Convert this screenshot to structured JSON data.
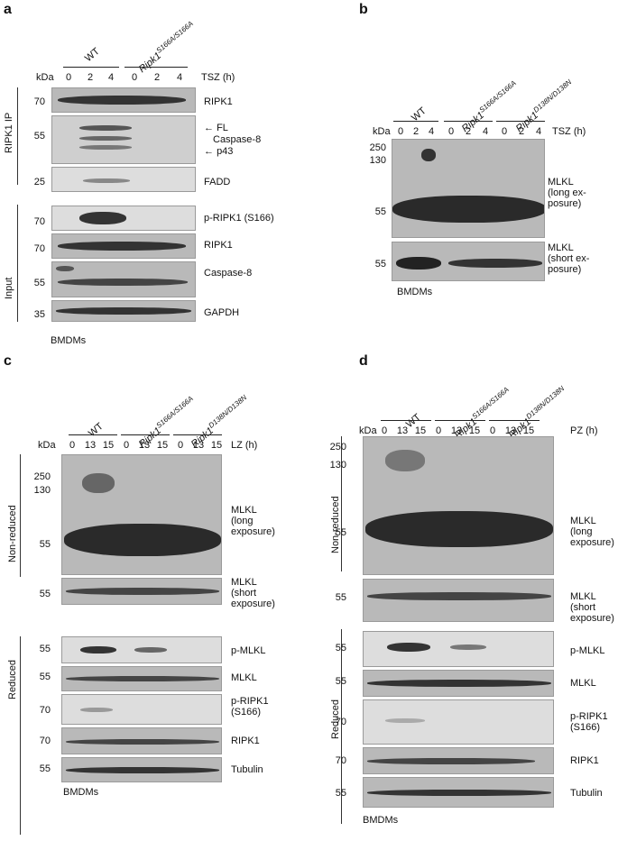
{
  "panels": [
    {
      "letter": "a",
      "kda": "kDa",
      "groups": [
        "WT",
        "Ripk1",
        "S166A/S166A"
      ],
      "lanes": [
        "0",
        "2",
        "4",
        "0",
        "2",
        "4"
      ],
      "treatment": "TSZ (h)",
      "ip_label": "RIPK1 IP",
      "input_label": "Input",
      "cells": "BMDMs",
      "blots": [
        {
          "mw": "70",
          "label": "RIPK1"
        },
        {
          "mw": "55",
          "label": "Caspase-8",
          "arrows": [
            "FL",
            "p43"
          ]
        },
        {
          "mw": "25",
          "label": "FADD"
        },
        {
          "mw": "70",
          "label": "p-RIPK1 (S166)"
        },
        {
          "mw": "70",
          "label": "RIPK1"
        },
        {
          "mw": "55",
          "label": "Caspase-8"
        },
        {
          "mw": "35",
          "label": "GAPDH"
        }
      ]
    },
    {
      "letter": "b",
      "kda": "kDa",
      "groups": [
        "WT",
        "Ripk1",
        "S166A/S166A",
        "Ripk1",
        "D138N/D138N"
      ],
      "lanes": [
        "0",
        "2",
        "4",
        "0",
        "2",
        "4",
        "0",
        "2",
        "4"
      ],
      "treatment": "TSZ (h)",
      "cells": "BMDMs",
      "blots": [
        {
          "mw": [
            "250",
            "130",
            "55"
          ],
          "label": [
            "MLKL",
            "(long ex-",
            "posure)"
          ]
        },
        {
          "mw": "55",
          "label": [
            "MLKL",
            "(short ex-",
            "posure)"
          ]
        }
      ]
    },
    {
      "letter": "c",
      "kda": "kDa",
      "groups": [
        "WT",
        "Ripk1",
        "S166A/S166A",
        "Ripk1",
        "D138N/D138N"
      ],
      "lanes": [
        "0",
        "13",
        "15",
        "0",
        "13",
        "15",
        "0",
        "13",
        "15"
      ],
      "treatment": "LZ (h)",
      "nonreduced_label": "Non-reduced",
      "reduced_label": "Reduced",
      "cells": "BMDMs",
      "blots": [
        {
          "mw": [
            "250",
            "130",
            "55"
          ],
          "label": [
            "MLKL",
            "(long",
            "exposure)"
          ]
        },
        {
          "mw": "55",
          "label": [
            "MLKL",
            "(short",
            "exposure)"
          ]
        },
        {
          "mw": "55",
          "label": [
            "p-MLKL"
          ]
        },
        {
          "mw": "55",
          "label": [
            "MLKL"
          ]
        },
        {
          "mw": "70",
          "label": [
            "p-RIPK1",
            "(S166)"
          ]
        },
        {
          "mw": "70",
          "label": [
            "RIPK1"
          ]
        },
        {
          "mw": "55",
          "label": [
            "Tubulin"
          ]
        }
      ]
    },
    {
      "letter": "d",
      "kda": "kDa",
      "groups": [
        "WT",
        "Ripk1",
        "S166A/S166A",
        "Ripk1",
        "D138N/D138N"
      ],
      "lanes": [
        "0",
        "13",
        "15",
        "0",
        "13",
        "15",
        "0",
        "13",
        "15"
      ],
      "treatment": "PZ (h)",
      "nonreduced_label": "Non-reduced",
      "reduced_label": "Reduced",
      "cells": "BMDMs",
      "blots": [
        {
          "mw": [
            "250",
            "130",
            "55"
          ],
          "label": [
            "MLKL",
            "(long",
            "exposure)"
          ]
        },
        {
          "mw": "55",
          "label": [
            "MLKL",
            "(short",
            "exposure)"
          ]
        },
        {
          "mw": "55",
          "label": [
            "p-MLKL"
          ]
        },
        {
          "mw": "55",
          "label": [
            "MLKL"
          ]
        },
        {
          "mw": "70",
          "label": [
            "p-RIPK1",
            "(S166)"
          ]
        },
        {
          "mw": "70",
          "label": [
            "RIPK1"
          ]
        },
        {
          "mw": "55",
          "label": [
            "Tubulin"
          ]
        }
      ]
    }
  ]
}
